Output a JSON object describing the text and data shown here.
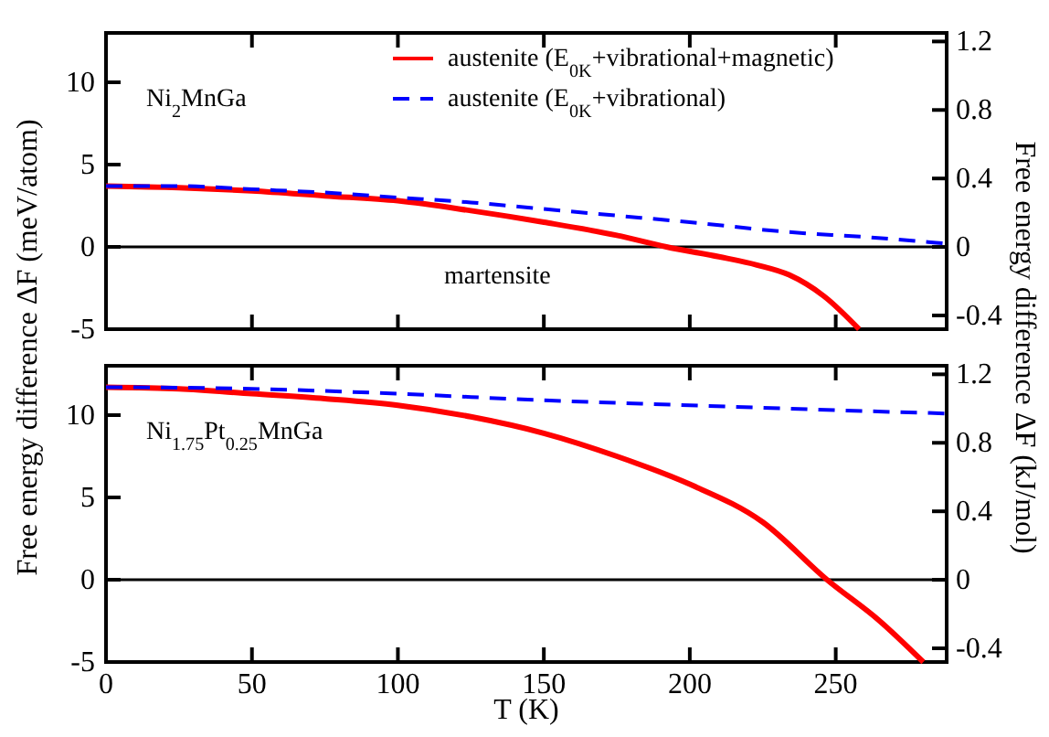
{
  "chart_data": [
    {
      "type": "line",
      "ylabel": "Free energy difference ΔF (meV/atom)",
      "y2label": "Free energy difference ΔF (kJ/mol)",
      "xlim": [
        0,
        288
      ],
      "xticks": [
        {
          "value": 0,
          "label": null
        },
        {
          "value": 50,
          "label": null
        },
        {
          "value": 100,
          "label": null
        },
        {
          "value": 150,
          "label": null
        },
        {
          "value": 200,
          "label": null
        },
        {
          "value": 250,
          "label": null
        }
      ],
      "ylim": [
        -5,
        13
      ],
      "yticks": [
        -5,
        0,
        5,
        10
      ],
      "y2lim": [
        -0.48,
        1.25
      ],
      "y2ticks": [
        -0.4,
        0,
        0.4,
        0.8,
        1.2
      ],
      "tick_labels": "y",
      "legend": "top right",
      "annotations": [
        "Ni$_{2}$MnGa",
        "martensite"
      ],
      "ref_lines": [
        {
          "axis": "y",
          "value": 0,
          "color": "#000000"
        }
      ],
      "series": [
        {
          "name": "austenite (E$_{0K}$+vibrational+magnetic)",
          "color": "#ff0000",
          "line_style": "solid",
          "x": [
            0,
            25,
            50,
            75,
            100,
            125,
            150,
            175,
            192,
            210,
            223,
            234,
            246,
            258
          ],
          "values": [
            3.7,
            3.6,
            3.4,
            3.1,
            2.8,
            2.2,
            1.5,
            0.7,
            0,
            -0.6,
            -1.1,
            -1.7,
            -3.0,
            -5
          ]
        },
        {
          "name": "austenite (E$_{0K}$+vibrational)",
          "color": "#0000ff",
          "line_style": "dashed",
          "x": [
            0,
            25,
            50,
            75,
            100,
            125,
            150,
            175,
            200,
            234,
            260,
            288
          ],
          "values": [
            3.7,
            3.7,
            3.5,
            3.3,
            3.0,
            2.7,
            2.3,
            1.9,
            1.5,
            0.9,
            0.6,
            0.2
          ]
        }
      ]
    },
    {
      "type": "line",
      "xlabel": "T (K)",
      "xlim": [
        0,
        288
      ],
      "xticks": [
        0,
        50,
        100,
        150,
        200,
        250
      ],
      "ylim": [
        -5,
        13
      ],
      "yticks": [
        -5,
        0,
        5,
        10
      ],
      "y2lim": [
        -0.48,
        1.25
      ],
      "y2ticks": [
        -0.4,
        0,
        0.4,
        0.8,
        1.2
      ],
      "annotations": [
        "Ni$_{1.75}$Pt$_{0.25}$MnGa"
      ],
      "ref_lines": [
        {
          "axis": "y",
          "value": 0,
          "color": "#000000"
        }
      ],
      "series": [
        {
          "color": "#ff0000",
          "line_style": "solid",
          "x": [
            0,
            25,
            50,
            75,
            100,
            125,
            150,
            175,
            200,
            225,
            247,
            265,
            280
          ],
          "values": [
            11.7,
            11.6,
            11.3,
            11.0,
            10.6,
            9.9,
            8.9,
            7.5,
            5.8,
            3.5,
            0,
            -2.5,
            -5
          ]
        },
        {
          "color": "#0000ff",
          "line_style": "dashed",
          "x": [
            0,
            50,
            100,
            150,
            200,
            250,
            288
          ],
          "values": [
            11.7,
            11.6,
            11.3,
            10.9,
            10.6,
            10.3,
            10.1
          ]
        }
      ]
    }
  ]
}
